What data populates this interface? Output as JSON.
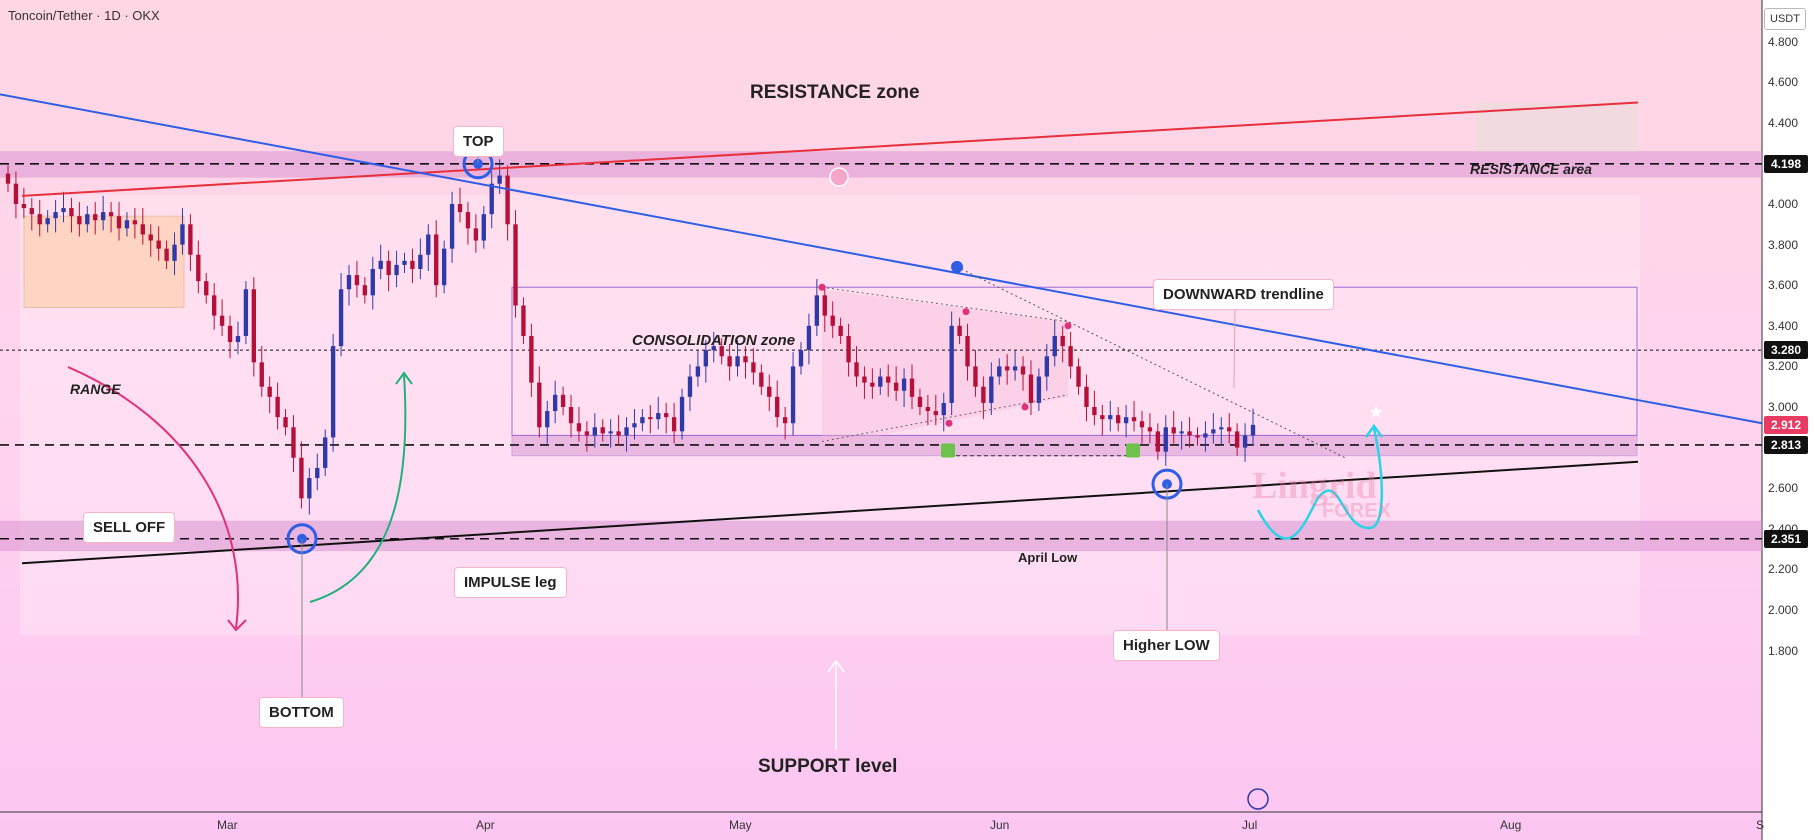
{
  "header": {
    "symbol": "Toncoin/Tether · 1D · OKX"
  },
  "axis": {
    "currency": "USDT"
  },
  "colors": {
    "resistance_line": "#e8303d",
    "trendline": "#2f5ee6",
    "support_line": "#111111",
    "zone_fill": "#d893d2",
    "impulse": "#21b07c",
    "selloff": "#e0317b",
    "path": "#2ad4e6",
    "current_price_tag": "#e83a62",
    "candle_up": "#2f3aa8",
    "candle_down": "#b5103a"
  },
  "annotations": {
    "resistance_zone": "RESISTANCE zone",
    "resistance_area": "RESISTANCE area",
    "support_level": "SUPPORT level",
    "consolidation_zone": "CONSOLIDATION zone",
    "range": "RANGE",
    "top": "TOP",
    "bottom": "BOTTOM",
    "sell_off": "SELL OFF",
    "impulse_leg": "IMPULSE leg",
    "downward_trendline": "DOWNWARD trendline",
    "higher_low": "Higher LOW",
    "april_low": "April Low",
    "watermark_main": "Lingrid",
    "watermark_sub": "FOREX"
  },
  "chart_data": {
    "type": "candlestick",
    "title": "Toncoin/Tether · 1D · OKX",
    "y_axis": {
      "unit": "USDT",
      "ticks": [
        "4.800",
        "4.600",
        "4.400",
        "4.000",
        "3.800",
        "3.600",
        "3.400",
        "3.200",
        "3.000",
        "2.600",
        "2.400",
        "2.200",
        "2.000",
        "1.800"
      ],
      "ylim": [
        1.65,
        4.95
      ]
    },
    "x_axis": {
      "ticks": [
        "Mar",
        "Apr",
        "May",
        "Jun",
        "Jul",
        "Aug",
        "S"
      ]
    },
    "price_tags": [
      {
        "value": "4.198",
        "kind": "level"
      },
      {
        "value": "3.280",
        "kind": "level"
      },
      {
        "value": "2.912",
        "kind": "current"
      },
      {
        "value": "2.813",
        "kind": "level"
      },
      {
        "value": "2.351",
        "kind": "level"
      }
    ],
    "horizontal_levels": [
      4.198,
      3.28,
      2.813,
      2.351
    ],
    "series": [
      {
        "name": "price",
        "values": [
          4.1,
          4.0,
          3.98,
          3.95,
          3.9,
          3.93,
          3.96,
          3.98,
          3.94,
          3.9,
          3.95,
          3.92,
          3.96,
          3.94,
          3.88,
          3.92,
          3.9,
          3.85,
          3.82,
          3.78,
          3.72,
          3.8,
          3.9,
          3.75,
          3.62,
          3.55,
          3.45,
          3.4,
          3.32,
          3.35,
          3.58,
          3.22,
          3.1,
          3.05,
          2.95,
          2.9,
          2.75,
          2.55,
          2.65,
          2.7,
          2.85,
          3.3,
          3.58,
          3.65,
          3.6,
          3.55,
          3.68,
          3.72,
          3.65,
          3.7,
          3.72,
          3.68,
          3.75,
          3.85,
          3.6,
          3.78,
          4.0,
          3.96,
          3.88,
          3.82,
          3.95,
          4.1,
          4.14,
          3.9,
          3.5,
          3.35,
          3.12,
          2.9,
          2.98,
          3.06,
          3.0,
          2.92,
          2.88,
          2.86,
          2.9,
          2.87,
          2.88,
          2.86,
          2.9,
          2.92,
          2.95,
          2.94,
          2.97,
          2.95,
          2.88,
          3.05,
          3.15,
          3.2,
          3.28,
          3.3,
          3.25,
          3.2,
          3.25,
          3.22,
          3.17,
          3.1,
          3.05,
          2.95,
          2.92,
          3.2,
          3.28,
          3.4,
          3.55,
          3.45,
          3.4,
          3.35,
          3.22,
          3.15,
          3.12,
          3.1,
          3.15,
          3.12,
          3.08,
          3.14,
          3.05,
          3.0,
          2.98,
          2.96,
          3.02,
          3.4,
          3.35,
          3.2,
          3.1,
          3.02,
          3.15,
          3.2,
          3.18,
          3.2,
          3.16,
          3.02,
          3.15,
          3.25,
          3.35,
          3.3,
          3.2,
          3.1,
          3.0,
          2.96,
          2.94,
          2.96,
          2.92,
          2.95,
          2.93,
          2.9,
          2.88,
          2.78,
          2.9,
          2.87,
          2.88,
          2.86,
          2.85,
          2.87,
          2.89,
          2.9,
          2.88,
          2.8,
          2.86,
          2.912
        ]
      }
    ],
    "annotations": [
      "RESISTANCE zone",
      "RESISTANCE area",
      "SUPPORT level",
      "CONSOLIDATION zone",
      "RANGE",
      "TOP",
      "BOTTOM",
      "SELL OFF",
      "IMPULSE leg",
      "DOWNWARD trendline",
      "Higher LOW",
      "April Low"
    ]
  }
}
